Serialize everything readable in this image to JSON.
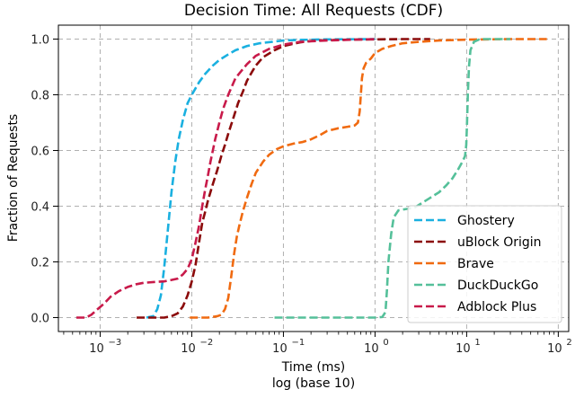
{
  "chart_data": {
    "type": "line",
    "title": "Decision Time: All Requests (CDF)",
    "xlabel": "Time (ms)",
    "xlabel2": "log (base 10)",
    "ylabel": "Fraction of Requests",
    "xscale": "log",
    "xlim": [
      0.00035,
      130
    ],
    "ylim": [
      -0.05,
      1.05
    ],
    "xticks": [
      0.001,
      0.01,
      0.1,
      1,
      10,
      100
    ],
    "xtick_labels": [
      "10",
      "10",
      "10",
      "10",
      "10",
      "10"
    ],
    "xtick_exponents": [
      "−3",
      "−2",
      "−1",
      "0",
      "1",
      "2"
    ],
    "yticks": [
      0.0,
      0.2,
      0.4,
      0.6,
      0.8,
      1.0
    ],
    "ytick_labels": [
      "0.0",
      "0.2",
      "0.4",
      "0.6",
      "0.8",
      "1.0"
    ],
    "grid": true,
    "legend_position": "lower-right",
    "series": [
      {
        "name": "Ghostery",
        "color": "#1ab0e0",
        "points": [
          [
            0.0032,
            0.0
          ],
          [
            0.0038,
            0.005
          ],
          [
            0.0042,
            0.03
          ],
          [
            0.0046,
            0.08
          ],
          [
            0.005,
            0.18
          ],
          [
            0.0055,
            0.32
          ],
          [
            0.006,
            0.45
          ],
          [
            0.0066,
            0.56
          ],
          [
            0.0072,
            0.64
          ],
          [
            0.008,
            0.71
          ],
          [
            0.009,
            0.77
          ],
          [
            0.01,
            0.8
          ],
          [
            0.012,
            0.845
          ],
          [
            0.014,
            0.875
          ],
          [
            0.017,
            0.905
          ],
          [
            0.02,
            0.925
          ],
          [
            0.025,
            0.945
          ],
          [
            0.03,
            0.96
          ],
          [
            0.04,
            0.975
          ],
          [
            0.055,
            0.985
          ],
          [
            0.075,
            0.99
          ],
          [
            0.1,
            0.995
          ],
          [
            0.15,
            0.997
          ],
          [
            0.3,
            0.999
          ],
          [
            1.0,
            1.0
          ]
        ]
      },
      {
        "name": "uBlock Origin",
        "color": "#8b0a0a",
        "points": [
          [
            0.0025,
            0.0
          ],
          [
            0.005,
            0.0
          ],
          [
            0.006,
            0.005
          ],
          [
            0.007,
            0.015
          ],
          [
            0.008,
            0.04
          ],
          [
            0.009,
            0.08
          ],
          [
            0.01,
            0.13
          ],
          [
            0.011,
            0.19
          ],
          [
            0.012,
            0.27
          ],
          [
            0.013,
            0.34
          ],
          [
            0.014,
            0.38
          ],
          [
            0.015,
            0.42
          ],
          [
            0.017,
            0.48
          ],
          [
            0.019,
            0.53
          ],
          [
            0.021,
            0.58
          ],
          [
            0.023,
            0.62
          ],
          [
            0.025,
            0.66
          ],
          [
            0.028,
            0.71
          ],
          [
            0.032,
            0.77
          ],
          [
            0.036,
            0.81
          ],
          [
            0.04,
            0.85
          ],
          [
            0.045,
            0.88
          ],
          [
            0.05,
            0.905
          ],
          [
            0.06,
            0.935
          ],
          [
            0.08,
            0.96
          ],
          [
            0.1,
            0.975
          ],
          [
            0.15,
            0.988
          ],
          [
            0.2,
            0.993
          ],
          [
            0.3,
            0.996
          ],
          [
            0.5,
            0.998
          ],
          [
            1.0,
            0.999
          ],
          [
            2.0,
            1.0
          ],
          [
            4.0,
            1.0
          ]
        ]
      },
      {
        "name": "Brave",
        "color": "#f06a10",
        "points": [
          [
            0.0095,
            0.0
          ],
          [
            0.015,
            0.0
          ],
          [
            0.019,
            0.005
          ],
          [
            0.021,
            0.01
          ],
          [
            0.023,
            0.03
          ],
          [
            0.025,
            0.07
          ],
          [
            0.027,
            0.15
          ],
          [
            0.029,
            0.23
          ],
          [
            0.031,
            0.29
          ],
          [
            0.033,
            0.33
          ],
          [
            0.036,
            0.38
          ],
          [
            0.04,
            0.43
          ],
          [
            0.045,
            0.48
          ],
          [
            0.05,
            0.52
          ],
          [
            0.06,
            0.56
          ],
          [
            0.07,
            0.585
          ],
          [
            0.085,
            0.605
          ],
          [
            0.1,
            0.615
          ],
          [
            0.13,
            0.625
          ],
          [
            0.16,
            0.63
          ],
          [
            0.2,
            0.64
          ],
          [
            0.25,
            0.655
          ],
          [
            0.3,
            0.67
          ],
          [
            0.4,
            0.68
          ],
          [
            0.5,
            0.685
          ],
          [
            0.6,
            0.69
          ],
          [
            0.65,
            0.7
          ],
          [
            0.68,
            0.74
          ],
          [
            0.7,
            0.8
          ],
          [
            0.72,
            0.86
          ],
          [
            0.75,
            0.895
          ],
          [
            0.8,
            0.915
          ],
          [
            0.9,
            0.93
          ],
          [
            1.0,
            0.95
          ],
          [
            1.2,
            0.965
          ],
          [
            1.5,
            0.975
          ],
          [
            2.0,
            0.985
          ],
          [
            3.0,
            0.99
          ],
          [
            5.0,
            0.995
          ],
          [
            10,
            0.998
          ],
          [
            30,
            1.0
          ],
          [
            75,
            1.0
          ]
        ]
      },
      {
        "name": "DuckDuckGo",
        "color": "#55c09a",
        "points": [
          [
            0.08,
            0.0
          ],
          [
            1.0,
            0.0
          ],
          [
            1.2,
            0.002
          ],
          [
            1.3,
            0.02
          ],
          [
            1.35,
            0.1
          ],
          [
            1.4,
            0.2
          ],
          [
            1.5,
            0.3
          ],
          [
            1.6,
            0.36
          ],
          [
            1.8,
            0.385
          ],
          [
            2.2,
            0.39
          ],
          [
            2.7,
            0.395
          ],
          [
            3.2,
            0.41
          ],
          [
            4.0,
            0.43
          ],
          [
            5.0,
            0.45
          ],
          [
            6.0,
            0.475
          ],
          [
            7.0,
            0.5
          ],
          [
            8.0,
            0.53
          ],
          [
            9.0,
            0.56
          ],
          [
            9.6,
            0.58
          ],
          [
            9.9,
            0.62
          ],
          [
            10.1,
            0.7
          ],
          [
            10.3,
            0.8
          ],
          [
            10.6,
            0.9
          ],
          [
            11.0,
            0.96
          ],
          [
            12.0,
            0.99
          ],
          [
            14.0,
            1.0
          ],
          [
            30,
            1.0
          ]
        ]
      },
      {
        "name": "Adblock Plus",
        "color": "#c81a4a",
        "points": [
          [
            0.00055,
            0.0
          ],
          [
            0.0007,
            0.0
          ],
          [
            0.0008,
            0.01
          ],
          [
            0.0009,
            0.025
          ],
          [
            0.0011,
            0.05
          ],
          [
            0.0013,
            0.075
          ],
          [
            0.0016,
            0.095
          ],
          [
            0.002,
            0.11
          ],
          [
            0.0025,
            0.12
          ],
          [
            0.003,
            0.125
          ],
          [
            0.004,
            0.128
          ],
          [
            0.005,
            0.13
          ],
          [
            0.006,
            0.135
          ],
          [
            0.007,
            0.14
          ],
          [
            0.008,
            0.155
          ],
          [
            0.009,
            0.175
          ],
          [
            0.01,
            0.21
          ],
          [
            0.011,
            0.27
          ],
          [
            0.012,
            0.33
          ],
          [
            0.013,
            0.4
          ],
          [
            0.014,
            0.46
          ],
          [
            0.015,
            0.51
          ],
          [
            0.016,
            0.56
          ],
          [
            0.018,
            0.64
          ],
          [
            0.02,
            0.7
          ],
          [
            0.022,
            0.75
          ],
          [
            0.025,
            0.8
          ],
          [
            0.03,
            0.86
          ],
          [
            0.04,
            0.91
          ],
          [
            0.05,
            0.94
          ],
          [
            0.07,
            0.965
          ],
          [
            0.1,
            0.98
          ],
          [
            0.15,
            0.99
          ],
          [
            0.3,
            0.995
          ],
          [
            0.6,
            0.998
          ],
          [
            1.0,
            1.0
          ]
        ]
      }
    ]
  }
}
